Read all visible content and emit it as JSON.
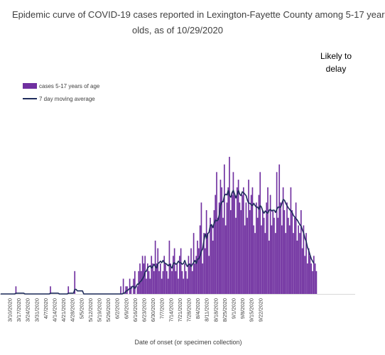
{
  "chart_data": {
    "type": "bar",
    "title_line1": "Epidemic curve of COVID-19 cases reported in Lexington-Fayette County among 5-17 year",
    "title_line2": "olds, as of 10/29/2020",
    "annotation_line1": "Likely to",
    "annotation_line2": "delay",
    "xlabel": "Date of onset (or specimen collection)",
    "ylabel": "",
    "series": [
      {
        "name": "cases 5-17 years of age",
        "color": "#7030A0"
      },
      {
        "name": "7 day moving average",
        "color": "#1F2D5C"
      }
    ],
    "tick_labels": [
      "3/10/2020",
      "3/17/2020",
      "3/24/2020",
      "3/31/2020",
      "4/7/2020",
      "4/14/2020",
      "4/21/2020",
      "4/28/2020",
      "5/5/2020",
      "5/12/2020",
      "5/19/2020",
      "5/26/2020",
      "6/2/2020",
      "6/9/2020",
      "6/16/2020",
      "6/23/2020",
      "6/30/2020",
      "7/7/2020",
      "7/14/2020",
      "7/21/2020",
      "7/28/2020",
      "8/4/2020",
      "8/11/2020",
      "8/18/2020",
      "8/25/2020",
      "9/1/2020",
      "9/8/2020",
      "9/15/2020",
      "9/22/2020"
    ],
    "start_date": "3/10/2020",
    "ylim": [
      0,
      21
    ],
    "values": [
      0,
      0,
      0,
      0,
      0,
      0,
      0,
      0,
      0,
      0,
      0,
      0,
      1,
      0,
      0,
      0,
      0,
      0,
      0,
      0,
      0,
      0,
      0,
      0,
      0,
      0,
      0,
      0,
      0,
      0,
      0,
      0,
      0,
      0,
      0,
      0,
      0,
      0,
      0,
      1,
      0,
      0,
      0,
      0,
      0,
      0,
      0,
      0,
      0,
      0,
      0,
      0,
      0,
      1,
      0,
      0,
      0,
      0,
      3,
      0,
      0,
      0,
      0,
      0,
      0,
      0,
      0,
      0,
      0,
      0,
      0,
      0,
      0,
      0,
      0,
      0,
      0,
      0,
      0,
      0,
      0,
      0,
      0,
      0,
      0,
      0,
      0,
      0,
      0,
      0,
      0,
      0,
      0,
      0,
      1,
      0,
      2,
      0,
      1,
      1,
      0,
      2,
      1,
      0,
      2,
      3,
      0,
      1,
      3,
      4,
      3,
      5,
      4,
      5,
      2,
      4,
      3,
      2,
      5,
      4,
      3,
      7,
      4,
      6,
      3,
      4,
      2,
      3,
      5,
      4,
      3,
      2,
      7,
      4,
      3,
      5,
      6,
      3,
      4,
      2,
      5,
      6,
      3,
      2,
      4,
      3,
      2,
      5,
      4,
      6,
      3,
      8,
      4,
      5,
      7,
      6,
      9,
      12,
      4,
      8,
      6,
      11,
      8,
      5,
      10,
      9,
      7,
      11,
      13,
      16,
      10,
      12,
      15,
      14,
      10,
      17,
      9,
      12,
      14,
      18,
      11,
      13,
      16,
      13,
      10,
      14,
      15,
      12,
      11,
      13,
      14,
      9,
      12,
      10,
      15,
      11,
      13,
      14,
      9,
      8,
      12,
      10,
      13,
      16,
      9,
      11,
      10,
      8,
      12,
      14,
      7,
      13,
      9,
      11,
      10,
      8,
      16,
      10,
      17,
      12,
      9,
      14,
      11,
      8,
      12,
      10,
      9,
      14,
      11,
      8,
      10,
      12,
      7,
      9,
      8,
      11,
      6,
      9,
      5,
      8,
      4,
      6,
      5,
      4,
      3,
      5,
      4,
      3
    ],
    "moving_average": [
      0,
      0,
      0,
      0,
      0,
      0,
      0,
      0,
      0,
      0,
      0,
      0,
      0.1,
      0.1,
      0.1,
      0.1,
      0.1,
      0.1,
      0.1,
      0,
      0,
      0,
      0,
      0,
      0,
      0,
      0,
      0,
      0,
      0,
      0,
      0,
      0,
      0,
      0,
      0,
      0,
      0,
      0,
      0.1,
      0.1,
      0.1,
      0.1,
      0.1,
      0.1,
      0.1,
      0,
      0,
      0,
      0,
      0,
      0,
      0,
      0.1,
      0.1,
      0.1,
      0.1,
      0.1,
      0.6,
      0.6,
      0.4,
      0.4,
      0.4,
      0.4,
      0.4,
      0,
      0,
      0,
      0,
      0,
      0,
      0,
      0,
      0,
      0,
      0,
      0,
      0,
      0,
      0,
      0,
      0,
      0,
      0,
      0,
      0,
      0,
      0,
      0,
      0,
      0,
      0,
      0,
      0,
      0,
      0,
      0.1,
      0.1,
      0.4,
      0.4,
      0.6,
      0.7,
      0.7,
      1,
      1,
      0.7,
      1,
      1.3,
      1.3,
      1.6,
      1.7,
      2,
      2.3,
      2.9,
      3,
      3.4,
      3.6,
      3.7,
      3.4,
      3.6,
      3.9,
      3.6,
      3.4,
      4,
      4.1,
      4.3,
      4.1,
      4.4,
      4.1,
      4,
      3.9,
      3.7,
      3.9,
      3.6,
      3.4,
      4,
      4.1,
      3.9,
      4,
      4.3,
      4.1,
      4.1,
      3.9,
      4,
      4.4,
      3.9,
      3.6,
      3.9,
      3.9,
      3.6,
      3.9,
      4.1,
      4.4,
      4,
      4.6,
      4.6,
      5,
      5.6,
      5.9,
      7,
      7.9,
      7.3,
      7.9,
      8.1,
      9,
      9.1,
      8.7,
      9.3,
      9.7,
      9.6,
      9.7,
      10.4,
      11.7,
      12.1,
      12.1,
      12.9,
      13.1,
      13,
      13.6,
      12.9,
      12.7,
      13.3,
      13.6,
      13.1,
      12.6,
      13.1,
      13.6,
      13.1,
      12.9,
      13.4,
      13.3,
      13.1,
      12.9,
      12.3,
      11.9,
      11.9,
      11.7,
      11.6,
      11.9,
      11.6,
      11.4,
      11.4,
      11.1,
      11.6,
      11.4,
      10.9,
      10.6,
      10.9,
      10.7,
      10.6,
      11,
      11.1,
      10.9,
      11,
      11,
      10.7,
      11.1,
      11.4,
      11.4,
      11.4,
      11.9,
      12.4,
      12.3,
      11.9,
      11.6,
      11.3,
      11.1,
      10.9,
      10.7,
      10.3,
      10.1,
      9.9,
      9.7,
      9.4,
      9.1,
      8.9,
      8.4,
      8,
      7.3,
      6.9,
      6.1,
      5.7,
      5.1,
      4.6,
      4.3,
      4
    ]
  }
}
